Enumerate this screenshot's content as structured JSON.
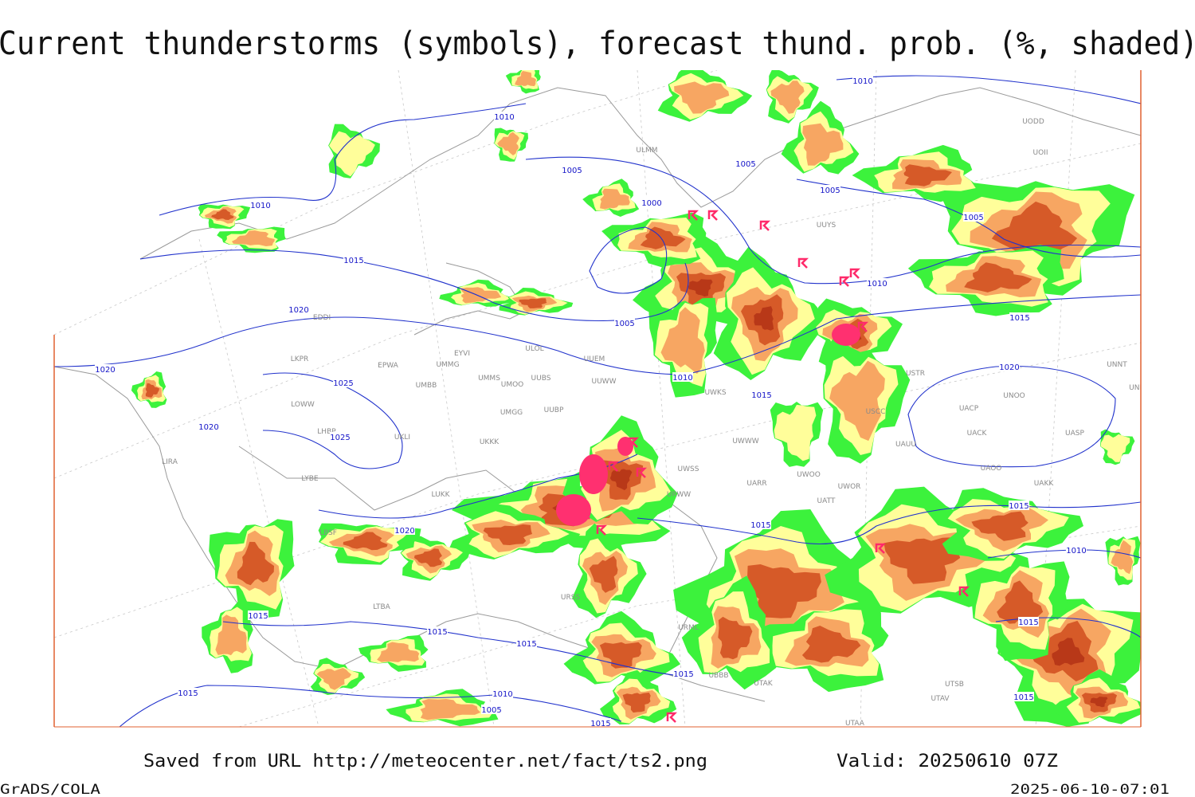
{
  "header": {
    "title": "Current thunderstorms (symbols), forecast thund. prob. (%, shaded)"
  },
  "isobar_labels": [
    "1010",
    "1010",
    "1005",
    "1005",
    "1005",
    "1010",
    "1000",
    "1005",
    "1015",
    "1010",
    "1020",
    "1005",
    "1015",
    "1020",
    "1010",
    "1025",
    "1015",
    "1020",
    "1020",
    "1025",
    "1015",
    "1015",
    "1015",
    "1020",
    "1010",
    "1015",
    "1015",
    "1015",
    "1015",
    "1015",
    "1010",
    "1015",
    "1015",
    "1005",
    "1015"
  ],
  "stations": [
    "ULMM",
    "UUYS",
    "UODD",
    "UOII",
    "EDDI",
    "EYVI",
    "ULOL",
    "UUEM",
    "LKPR",
    "EPWA",
    "UMMG",
    "UMMS",
    "UMOO",
    "UUBS",
    "UUWW",
    "UMBB",
    "USTR",
    "UNNT",
    "UNBB",
    "UNOO",
    "UWKS",
    "LOWW",
    "UMGG",
    "UUBP",
    "UACP",
    "USCC",
    "UKLI",
    "LHBP",
    "UKKK",
    "UWWW",
    "UACK",
    "UASP",
    "UAUU",
    "UWOO",
    "UWOR",
    "LYBE",
    "UWSS",
    "UARR",
    "UAOO",
    "UAKK",
    "LUKK",
    "URWW",
    "UATT",
    "LIRA",
    "LBSF",
    "URSS",
    "LTBA",
    "URML",
    "UBBB",
    "UTAK",
    "UTSB",
    "UTAV",
    "UTAA"
  ],
  "footer": {
    "source": "Saved from URL http://meteocenter.net/fact/ts2.png",
    "valid": "Valid: 20250610 07Z",
    "software": "GrADS/COLA",
    "timestamp": "2025-06-10-07:01"
  }
}
